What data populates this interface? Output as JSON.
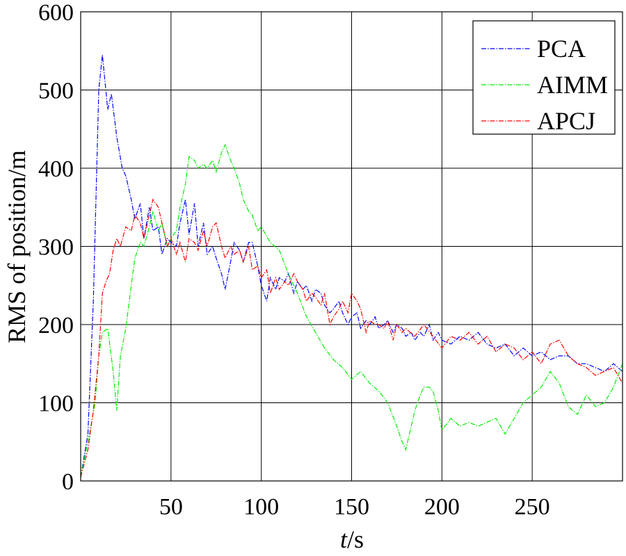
{
  "chart_data": {
    "type": "line",
    "title": "",
    "xlabel_italic": "t",
    "xlabel_rest": "/s",
    "ylabel": "RMS of position/m",
    "xlim": [
      0,
      300
    ],
    "ylim": [
      0,
      600
    ],
    "xticks": [
      50,
      100,
      150,
      200,
      250
    ],
    "yticks": [
      0,
      100,
      200,
      300,
      400,
      500,
      600
    ],
    "grid": true,
    "legend_position": "top-right",
    "series": [
      {
        "name": "PCA",
        "color": "#0000ff",
        "dash": "dashdot",
        "x": [
          0,
          4,
          7,
          10,
          12,
          15,
          17,
          20,
          23,
          25,
          28,
          30,
          33,
          35,
          38,
          40,
          43,
          45,
          48,
          50,
          53,
          55,
          58,
          60,
          63,
          65,
          68,
          70,
          73,
          75,
          78,
          80,
          83,
          85,
          88,
          90,
          93,
          95,
          98,
          100,
          103,
          105,
          108,
          110,
          113,
          115,
          118,
          120,
          123,
          125,
          128,
          130,
          133,
          135,
          138,
          140,
          143,
          145,
          148,
          150,
          153,
          155,
          158,
          160,
          163,
          165,
          168,
          170,
          173,
          175,
          178,
          180,
          183,
          185,
          188,
          190,
          193,
          195,
          198,
          200,
          205,
          210,
          215,
          220,
          225,
          230,
          235,
          240,
          245,
          250,
          255,
          260,
          265,
          270,
          275,
          280,
          285,
          290,
          295,
          300
        ],
        "y": [
          5,
          60,
          230,
          500,
          545,
          475,
          495,
          440,
          400,
          390,
          360,
          335,
          355,
          310,
          350,
          320,
          325,
          290,
          310,
          305,
          300,
          330,
          360,
          315,
          355,
          300,
          330,
          290,
          300,
          285,
          265,
          245,
          280,
          305,
          295,
          280,
          305,
          305,
          275,
          250,
          230,
          260,
          245,
          260,
          255,
          265,
          240,
          255,
          245,
          250,
          230,
          245,
          240,
          225,
          215,
          220,
          230,
          215,
          200,
          210,
          215,
          195,
          205,
          200,
          210,
          195,
          200,
          205,
          190,
          200,
          195,
          185,
          190,
          180,
          190,
          185,
          200,
          180,
          190,
          180,
          175,
          185,
          180,
          190,
          175,
          170,
          175,
          160,
          170,
          160,
          165,
          155,
          160,
          160,
          150,
          150,
          145,
          140,
          150,
          140
        ]
      },
      {
        "name": "AIMM",
        "color": "#00ee00",
        "dash": "dashdot",
        "x": [
          0,
          4,
          8,
          10,
          12,
          15,
          18,
          20,
          22,
          25,
          28,
          30,
          33,
          35,
          38,
          40,
          43,
          45,
          48,
          50,
          53,
          55,
          58,
          60,
          63,
          65,
          68,
          70,
          73,
          75,
          78,
          80,
          83,
          85,
          88,
          90,
          93,
          95,
          98,
          100,
          105,
          110,
          115,
          120,
          125,
          130,
          135,
          140,
          145,
          150,
          155,
          160,
          165,
          170,
          175,
          178,
          180,
          183,
          185,
          188,
          190,
          193,
          195,
          198,
          200,
          205,
          210,
          215,
          220,
          225,
          230,
          235,
          240,
          245,
          250,
          255,
          260,
          265,
          270,
          275,
          280,
          285,
          290,
          295,
          300
        ],
        "y": [
          5,
          50,
          100,
          160,
          190,
          195,
          140,
          90,
          160,
          195,
          250,
          285,
          305,
          300,
          325,
          345,
          320,
          330,
          300,
          310,
          320,
          350,
          380,
          415,
          410,
          400,
          405,
          400,
          410,
          395,
          420,
          430,
          410,
          400,
          380,
          360,
          345,
          340,
          320,
          325,
          305,
          295,
          265,
          240,
          210,
          190,
          170,
          155,
          145,
          130,
          140,
          125,
          115,
          100,
          70,
          50,
          40,
          70,
          90,
          110,
          120,
          120,
          115,
          90,
          65,
          80,
          70,
          75,
          70,
          75,
          80,
          60,
          80,
          100,
          110,
          120,
          140,
          125,
          95,
          85,
          110,
          95,
          100,
          120,
          150
        ]
      },
      {
        "name": "APCJ",
        "color": "#ff0000",
        "dash": "dashdot",
        "x": [
          0,
          4,
          7,
          10,
          12,
          14,
          16,
          18,
          20,
          22,
          25,
          28,
          30,
          33,
          35,
          38,
          40,
          43,
          45,
          48,
          50,
          53,
          55,
          58,
          60,
          63,
          65,
          68,
          70,
          73,
          75,
          78,
          80,
          83,
          85,
          88,
          90,
          93,
          95,
          98,
          100,
          103,
          105,
          108,
          110,
          113,
          115,
          118,
          120,
          123,
          125,
          128,
          130,
          133,
          135,
          138,
          140,
          143,
          145,
          148,
          150,
          153,
          155,
          158,
          160,
          163,
          165,
          168,
          170,
          173,
          175,
          178,
          180,
          185,
          190,
          195,
          200,
          205,
          210,
          215,
          220,
          225,
          230,
          235,
          240,
          245,
          250,
          255,
          260,
          265,
          270,
          275,
          280,
          285,
          290,
          295,
          300
        ],
        "y": [
          5,
          40,
          90,
          160,
          240,
          255,
          265,
          295,
          310,
          300,
          325,
          320,
          340,
          330,
          310,
          340,
          360,
          350,
          330,
          300,
          310,
          290,
          305,
          280,
          310,
          305,
          295,
          320,
          300,
          325,
          330,
          300,
          285,
          300,
          290,
          295,
          280,
          300,
          270,
          275,
          260,
          270,
          240,
          260,
          245,
          255,
          250,
          265,
          255,
          245,
          230,
          240,
          235,
          225,
          240,
          200,
          210,
          220,
          230,
          215,
          240,
          230,
          220,
          190,
          205,
          200,
          200,
          195,
          205,
          180,
          200,
          190,
          195,
          185,
          200,
          185,
          170,
          185,
          180,
          190,
          175,
          185,
          165,
          175,
          170,
          155,
          165,
          150,
          175,
          180,
          160,
          150,
          145,
          135,
          140,
          145,
          125
        ]
      }
    ]
  }
}
